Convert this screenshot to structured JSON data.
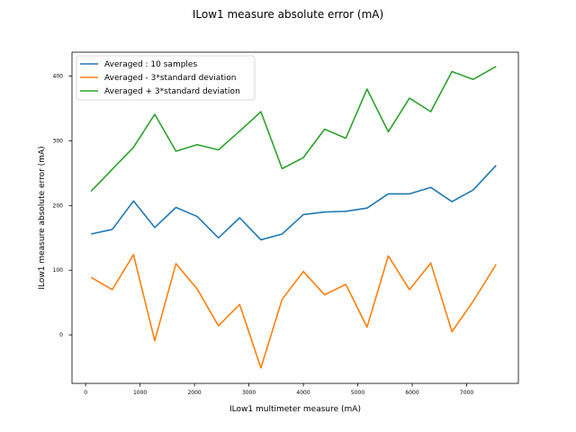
{
  "chart_data": {
    "type": "line",
    "title": "ILow1 measure absolute error (mA)",
    "xlabel": "ILow1 multimeter measure (mA)",
    "ylabel": "ILow1 measure absolute error (mA)",
    "xlim": [
      -250,
      7950
    ],
    "ylim": [
      -75,
      437
    ],
    "xticks": [
      0,
      1000,
      2000,
      3000,
      4000,
      5000,
      6000,
      7000
    ],
    "yticks": [
      0,
      100,
      200,
      300,
      400
    ],
    "legend_position": "upper-left",
    "grid": false,
    "x": [
      100,
      490,
      880,
      1270,
      1660,
      2050,
      2440,
      2830,
      3220,
      3610,
      4000,
      4390,
      4780,
      5170,
      5560,
      5950,
      6340,
      6730,
      7120,
      7540
    ],
    "series": [
      {
        "name": "Averaged : 10 samples",
        "color": "#1f77b4",
        "values": [
          156,
          163,
          207,
          166,
          197,
          183,
          150,
          181,
          147,
          156,
          186,
          190,
          191,
          196,
          218,
          218,
          228,
          206,
          224,
          262
        ]
      },
      {
        "name": "Averaged - 3*standard deviation",
        "color": "#ff7f0e",
        "values": [
          89,
          70,
          124,
          -9,
          110,
          71,
          14,
          47,
          -51,
          55,
          98,
          62,
          78,
          12,
          122,
          70,
          111,
          5,
          52,
          109
        ]
      },
      {
        "name": "Averaged + 3*standard deviation",
        "color": "#2ca02c",
        "values": [
          222,
          256,
          290,
          341,
          284,
          294,
          286,
          315,
          345,
          257,
          274,
          318,
          304,
          380,
          314,
          366,
          345,
          407,
          395,
          415
        ]
      }
    ]
  }
}
